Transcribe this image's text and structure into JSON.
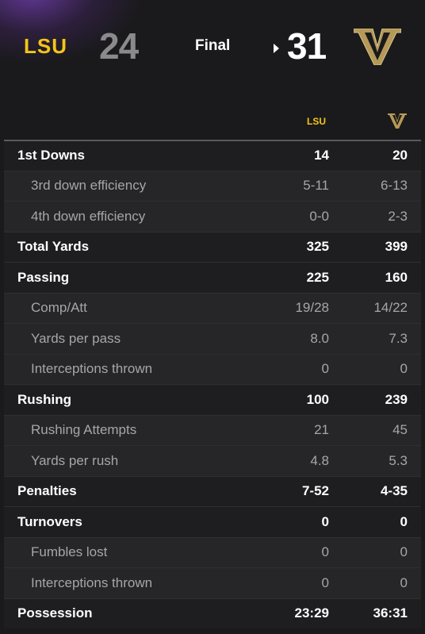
{
  "game": {
    "away": {
      "logo_text": "LSU",
      "score": "24",
      "color": "#f5c518"
    },
    "home": {
      "logo_text": "V",
      "score": "31",
      "color": "#b59a57"
    },
    "status": "Final"
  },
  "columns": {
    "away_logo_text": "LSU",
    "home_logo_text": "V"
  },
  "stats": [
    {
      "label": "1st Downs",
      "away": "14",
      "home": "20",
      "type": "main"
    },
    {
      "label": "3rd down efficiency",
      "away": "5-11",
      "home": "6-13",
      "type": "sub"
    },
    {
      "label": "4th down efficiency",
      "away": "0-0",
      "home": "2-3",
      "type": "sub"
    },
    {
      "label": "Total Yards",
      "away": "325",
      "home": "399",
      "type": "main"
    },
    {
      "label": "Passing",
      "away": "225",
      "home": "160",
      "type": "main"
    },
    {
      "label": "Comp/Att",
      "away": "19/28",
      "home": "14/22",
      "type": "sub"
    },
    {
      "label": "Yards per pass",
      "away": "8.0",
      "home": "7.3",
      "type": "sub"
    },
    {
      "label": "Interceptions thrown",
      "away": "0",
      "home": "0",
      "type": "sub"
    },
    {
      "label": "Rushing",
      "away": "100",
      "home": "239",
      "type": "main"
    },
    {
      "label": "Rushing Attempts",
      "away": "21",
      "home": "45",
      "type": "sub"
    },
    {
      "label": "Yards per rush",
      "away": "4.8",
      "home": "5.3",
      "type": "sub"
    },
    {
      "label": "Penalties",
      "away": "7-52",
      "home": "4-35",
      "type": "main"
    },
    {
      "label": "Turnovers",
      "away": "0",
      "home": "0",
      "type": "main"
    },
    {
      "label": "Fumbles lost",
      "away": "0",
      "home": "0",
      "type": "sub"
    },
    {
      "label": "Interceptions thrown",
      "away": "0",
      "home": "0",
      "type": "sub"
    },
    {
      "label": "Possession",
      "away": "23:29",
      "home": "36:31",
      "type": "main"
    }
  ]
}
